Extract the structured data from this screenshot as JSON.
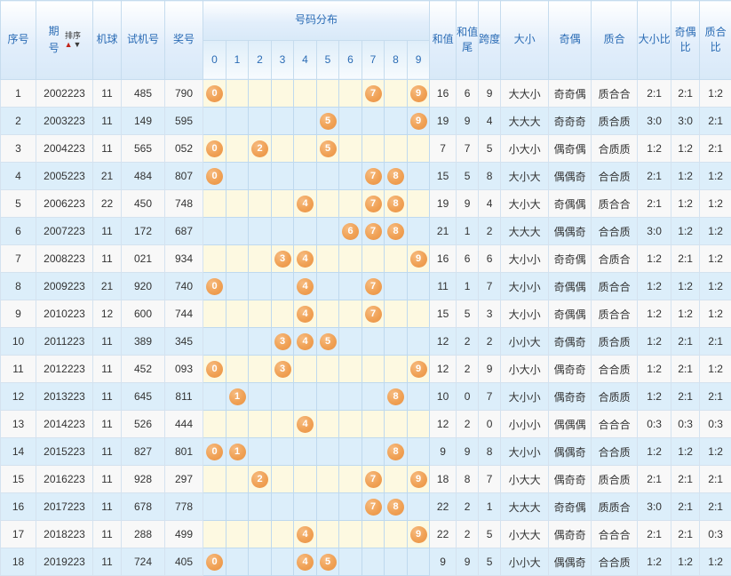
{
  "header": {
    "serial": "序号",
    "period": "期号",
    "sort_label": "排序",
    "sort_up": "▲",
    "sort_down": "▼",
    "machine": "机球",
    "test_no": "试机号",
    "prize_no": "奖号",
    "distribution": "号码分布",
    "digits": [
      "0",
      "1",
      "2",
      "3",
      "4",
      "5",
      "6",
      "7",
      "8",
      "9"
    ],
    "sum": "和值",
    "sum_tail": "和值尾",
    "span": "跨度",
    "big_small": "大小",
    "odd_even": "奇偶",
    "prime_comp": "质合",
    "big_small_ratio": "大小比",
    "odd_even_ratio": "奇偶比",
    "prime_comp_ratio": "质合比"
  },
  "colors": {
    "ball": "#F0A155",
    "header_text": "#2B6CB5",
    "grid_line": "#BFD9EE",
    "row_alt_bg": "#DCEEFA",
    "ball_area_bg": "#FDF9E1"
  },
  "rows": [
    {
      "no": "1",
      "period": "2002223",
      "machine": "11",
      "test": "485",
      "prize": "790",
      "balls": [
        0,
        7,
        9
      ],
      "sum": "16",
      "sum_tail": "6",
      "span": "9",
      "big_small": "大大小",
      "odd_even": "奇奇偶",
      "prime_comp": "质合合",
      "bs_ratio": "2:1",
      "oe_ratio": "2:1",
      "pc_ratio": "1:2"
    },
    {
      "no": "2",
      "period": "2003223",
      "machine": "11",
      "test": "149",
      "prize": "595",
      "balls": [
        5,
        9
      ],
      "sum": "19",
      "sum_tail": "9",
      "span": "4",
      "big_small": "大大大",
      "odd_even": "奇奇奇",
      "prime_comp": "质合质",
      "bs_ratio": "3:0",
      "oe_ratio": "3:0",
      "pc_ratio": "2:1"
    },
    {
      "no": "3",
      "period": "2004223",
      "machine": "11",
      "test": "565",
      "prize": "052",
      "balls": [
        0,
        2,
        5
      ],
      "sum": "7",
      "sum_tail": "7",
      "span": "5",
      "big_small": "小大小",
      "odd_even": "偶奇偶",
      "prime_comp": "合质质",
      "bs_ratio": "1:2",
      "oe_ratio": "1:2",
      "pc_ratio": "2:1"
    },
    {
      "no": "4",
      "period": "2005223",
      "machine": "21",
      "test": "484",
      "prize": "807",
      "balls": [
        0,
        7,
        8
      ],
      "sum": "15",
      "sum_tail": "5",
      "span": "8",
      "big_small": "大小大",
      "odd_even": "偶偶奇",
      "prime_comp": "合合质",
      "bs_ratio": "2:1",
      "oe_ratio": "1:2",
      "pc_ratio": "1:2"
    },
    {
      "no": "5",
      "period": "2006223",
      "machine": "22",
      "test": "450",
      "prize": "748",
      "balls": [
        4,
        7,
        8
      ],
      "sum": "19",
      "sum_tail": "9",
      "span": "4",
      "big_small": "大小大",
      "odd_even": "奇偶偶",
      "prime_comp": "质合合",
      "bs_ratio": "2:1",
      "oe_ratio": "1:2",
      "pc_ratio": "1:2"
    },
    {
      "no": "6",
      "period": "2007223",
      "machine": "11",
      "test": "172",
      "prize": "687",
      "balls": [
        6,
        7,
        8
      ],
      "sum": "21",
      "sum_tail": "1",
      "span": "2",
      "big_small": "大大大",
      "odd_even": "偶偶奇",
      "prime_comp": "合合质",
      "bs_ratio": "3:0",
      "oe_ratio": "1:2",
      "pc_ratio": "1:2"
    },
    {
      "no": "7",
      "period": "2008223",
      "machine": "11",
      "test": "021",
      "prize": "934",
      "balls": [
        3,
        4,
        9
      ],
      "sum": "16",
      "sum_tail": "6",
      "span": "6",
      "big_small": "大小小",
      "odd_even": "奇奇偶",
      "prime_comp": "合质合",
      "bs_ratio": "1:2",
      "oe_ratio": "2:1",
      "pc_ratio": "1:2"
    },
    {
      "no": "8",
      "period": "2009223",
      "machine": "21",
      "test": "920",
      "prize": "740",
      "balls": [
        0,
        4,
        7
      ],
      "sum": "11",
      "sum_tail": "1",
      "span": "7",
      "big_small": "大小小",
      "odd_even": "奇偶偶",
      "prime_comp": "质合合",
      "bs_ratio": "1:2",
      "oe_ratio": "1:2",
      "pc_ratio": "1:2"
    },
    {
      "no": "9",
      "period": "2010223",
      "machine": "12",
      "test": "600",
      "prize": "744",
      "balls": [
        4,
        7
      ],
      "sum": "15",
      "sum_tail": "5",
      "span": "3",
      "big_small": "大小小",
      "odd_even": "奇偶偶",
      "prime_comp": "质合合",
      "bs_ratio": "1:2",
      "oe_ratio": "1:2",
      "pc_ratio": "1:2"
    },
    {
      "no": "10",
      "period": "2011223",
      "machine": "11",
      "test": "389",
      "prize": "345",
      "balls": [
        3,
        4,
        5
      ],
      "sum": "12",
      "sum_tail": "2",
      "span": "2",
      "big_small": "小小大",
      "odd_even": "奇偶奇",
      "prime_comp": "质合质",
      "bs_ratio": "1:2",
      "oe_ratio": "2:1",
      "pc_ratio": "2:1"
    },
    {
      "no": "11",
      "period": "2012223",
      "machine": "11",
      "test": "452",
      "prize": "093",
      "balls": [
        0,
        3,
        9
      ],
      "sum": "12",
      "sum_tail": "2",
      "span": "9",
      "big_small": "小大小",
      "odd_even": "偶奇奇",
      "prime_comp": "合合质",
      "bs_ratio": "1:2",
      "oe_ratio": "2:1",
      "pc_ratio": "1:2"
    },
    {
      "no": "12",
      "period": "2013223",
      "machine": "11",
      "test": "645",
      "prize": "811",
      "balls": [
        1,
        8
      ],
      "sum": "10",
      "sum_tail": "0",
      "span": "7",
      "big_small": "大小小",
      "odd_even": "偶奇奇",
      "prime_comp": "合质质",
      "bs_ratio": "1:2",
      "oe_ratio": "2:1",
      "pc_ratio": "2:1"
    },
    {
      "no": "13",
      "period": "2014223",
      "machine": "11",
      "test": "526",
      "prize": "444",
      "balls": [
        4
      ],
      "sum": "12",
      "sum_tail": "2",
      "span": "0",
      "big_small": "小小小",
      "odd_even": "偶偶偶",
      "prime_comp": "合合合",
      "bs_ratio": "0:3",
      "oe_ratio": "0:3",
      "pc_ratio": "0:3"
    },
    {
      "no": "14",
      "period": "2015223",
      "machine": "11",
      "test": "827",
      "prize": "801",
      "balls": [
        0,
        1,
        8
      ],
      "sum": "9",
      "sum_tail": "9",
      "span": "8",
      "big_small": "大小小",
      "odd_even": "偶偶奇",
      "prime_comp": "合合质",
      "bs_ratio": "1:2",
      "oe_ratio": "1:2",
      "pc_ratio": "1:2"
    },
    {
      "no": "15",
      "period": "2016223",
      "machine": "11",
      "test": "928",
      "prize": "297",
      "balls": [
        2,
        7,
        9
      ],
      "sum": "18",
      "sum_tail": "8",
      "span": "7",
      "big_small": "小大大",
      "odd_even": "偶奇奇",
      "prime_comp": "质合质",
      "bs_ratio": "2:1",
      "oe_ratio": "2:1",
      "pc_ratio": "2:1"
    },
    {
      "no": "16",
      "period": "2017223",
      "machine": "11",
      "test": "678",
      "prize": "778",
      "balls": [
        7,
        8
      ],
      "sum": "22",
      "sum_tail": "2",
      "span": "1",
      "big_small": "大大大",
      "odd_even": "奇奇偶",
      "prime_comp": "质质合",
      "bs_ratio": "3:0",
      "oe_ratio": "2:1",
      "pc_ratio": "2:1"
    },
    {
      "no": "17",
      "period": "2018223",
      "machine": "11",
      "test": "288",
      "prize": "499",
      "balls": [
        4,
        9
      ],
      "sum": "22",
      "sum_tail": "2",
      "span": "5",
      "big_small": "小大大",
      "odd_even": "偶奇奇",
      "prime_comp": "合合合",
      "bs_ratio": "2:1",
      "oe_ratio": "2:1",
      "pc_ratio": "0:3"
    },
    {
      "no": "18",
      "period": "2019223",
      "machine": "11",
      "test": "724",
      "prize": "405",
      "balls": [
        0,
        4,
        5
      ],
      "sum": "9",
      "sum_tail": "9",
      "span": "5",
      "big_small": "小小大",
      "odd_even": "偶偶奇",
      "prime_comp": "合合质",
      "bs_ratio": "1:2",
      "oe_ratio": "1:2",
      "pc_ratio": "1:2"
    }
  ]
}
